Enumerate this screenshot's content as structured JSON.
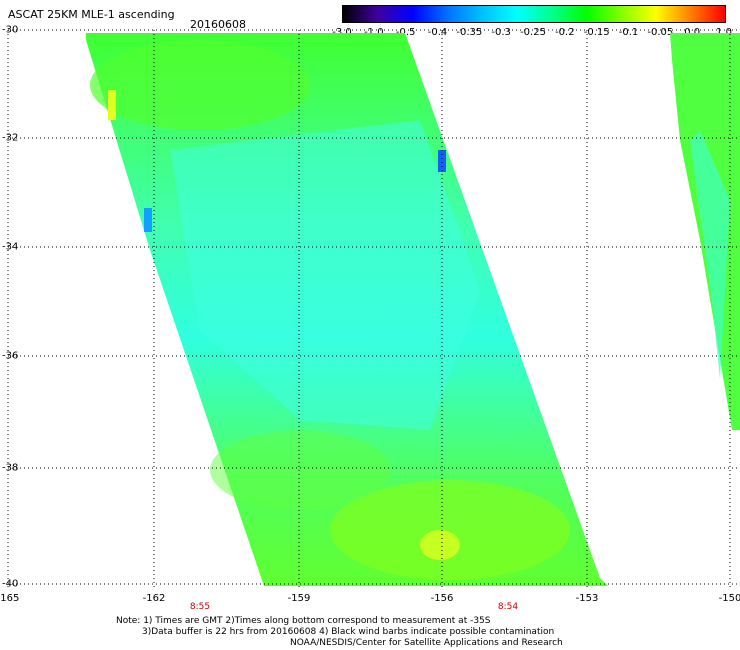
{
  "header": {
    "title": "ASCAT 25KM MLE-1 ascending",
    "date": "20160608"
  },
  "colorbar": {
    "ticks": [
      "-3.0",
      "-1.0",
      "-0.5",
      "-0.4",
      "-0.35",
      "-0.3",
      "-0.25",
      "-0.2",
      "-0.15",
      "-0.1",
      "-0.05",
      "0.0",
      "1.0"
    ],
    "colors": [
      "#000000",
      "#4000a0",
      "#0000ff",
      "#0070ff",
      "#00c0ff",
      "#00ffff",
      "#00ff90",
      "#00ff00",
      "#80ff00",
      "#ffff00",
      "#ff8000",
      "#ff0000"
    ]
  },
  "axes": {
    "lat_labels": [
      "-30",
      "-32",
      "-34",
      "-36",
      "-38",
      "-40"
    ],
    "lon_labels": [
      "-165",
      "-162",
      "-159",
      "-156",
      "-153",
      "-150"
    ]
  },
  "times": [
    "8:55",
    "8:54"
  ],
  "notes": {
    "line1": "Note: 1) Times are GMT 2)Times along bottom correspond to measurement at -35S",
    "line2": "3)Data buffer is 22 hrs from 20160608 4) Black wind barbs indicate possible contamination",
    "line3": "NOAA/NESDIS/Center for Satellite Applications and Research"
  }
}
